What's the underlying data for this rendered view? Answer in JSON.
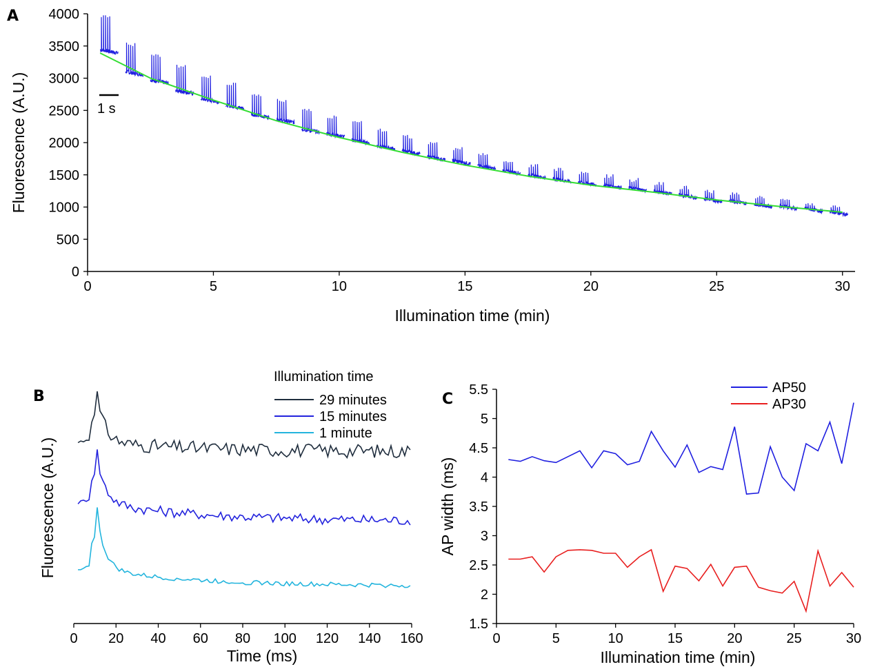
{
  "panel_labels": {
    "a": "A",
    "b": "B",
    "c": "C"
  },
  "chart_data": [
    {
      "id": "A",
      "type": "line",
      "title": "",
      "xlabel": "Illumination time (min)",
      "ylabel": "Fluorescence (A.U.)",
      "xlim": [
        0,
        30.5
      ],
      "ylim": [
        0,
        4000
      ],
      "xticks": [
        0,
        5,
        10,
        15,
        20,
        25,
        30
      ],
      "yticks": [
        0,
        500,
        1000,
        1500,
        2000,
        2500,
        3000,
        3500,
        4000
      ],
      "scale_bar_label": "1 s",
      "colors": {
        "trace": "#1f1fe0",
        "fit": "#33dd33"
      },
      "bursts": [
        {
          "t": 0.5,
          "base": 3420,
          "peak": 3980
        },
        {
          "t": 1.5,
          "base": 3080,
          "peak": 3560
        },
        {
          "t": 2.5,
          "base": 2950,
          "peak": 3390
        },
        {
          "t": 3.5,
          "base": 2790,
          "peak": 3210
        },
        {
          "t": 4.5,
          "base": 2660,
          "peak": 3060
        },
        {
          "t": 5.5,
          "base": 2560,
          "peak": 2950
        },
        {
          "t": 6.5,
          "base": 2420,
          "peak": 2770
        },
        {
          "t": 7.5,
          "base": 2340,
          "peak": 2680
        },
        {
          "t": 8.5,
          "base": 2190,
          "peak": 2530
        },
        {
          "t": 9.5,
          "base": 2120,
          "peak": 2430
        },
        {
          "t": 10.5,
          "base": 2020,
          "peak": 2350
        },
        {
          "t": 11.5,
          "base": 1930,
          "peak": 2230
        },
        {
          "t": 12.5,
          "base": 1850,
          "peak": 2120
        },
        {
          "t": 13.5,
          "base": 1760,
          "peak": 2010
        },
        {
          "t": 14.5,
          "base": 1700,
          "peak": 1930
        },
        {
          "t": 15.5,
          "base": 1620,
          "peak": 1840
        },
        {
          "t": 16.5,
          "base": 1550,
          "peak": 1750
        },
        {
          "t": 17.5,
          "base": 1480,
          "peak": 1670
        },
        {
          "t": 18.5,
          "base": 1420,
          "peak": 1610
        },
        {
          "t": 19.5,
          "base": 1370,
          "peak": 1560
        },
        {
          "t": 20.5,
          "base": 1330,
          "peak": 1510
        },
        {
          "t": 21.5,
          "base": 1280,
          "peak": 1450
        },
        {
          "t": 22.5,
          "base": 1230,
          "peak": 1390
        },
        {
          "t": 23.5,
          "base": 1170,
          "peak": 1330
        },
        {
          "t": 24.5,
          "base": 1110,
          "peak": 1270
        },
        {
          "t": 25.5,
          "base": 1080,
          "peak": 1230
        },
        {
          "t": 26.5,
          "base": 1030,
          "peak": 1180
        },
        {
          "t": 27.5,
          "base": 1000,
          "peak": 1130
        },
        {
          "t": 28.5,
          "base": 960,
          "peak": 1080
        },
        {
          "t": 29.5,
          "base": 910,
          "peak": 1030
        }
      ],
      "fit": [
        {
          "x": 0.5,
          "y": 3390
        },
        {
          "x": 2.5,
          "y": 3000
        },
        {
          "x": 5,
          "y": 2660
        },
        {
          "x": 7.5,
          "y": 2340
        },
        {
          "x": 10,
          "y": 2080
        },
        {
          "x": 12.5,
          "y": 1850
        },
        {
          "x": 15,
          "y": 1650
        },
        {
          "x": 17.5,
          "y": 1480
        },
        {
          "x": 20,
          "y": 1340
        },
        {
          "x": 22.5,
          "y": 1230
        },
        {
          "x": 25,
          "y": 1110
        },
        {
          "x": 27.5,
          "y": 1010
        },
        {
          "x": 30,
          "y": 920
        }
      ]
    },
    {
      "id": "B",
      "type": "line",
      "title": "",
      "xlabel": "Time (ms)",
      "ylabel": "Fluorescence (A.U.)",
      "xlim": [
        0,
        160
      ],
      "xticks": [
        0,
        20,
        40,
        60,
        80,
        100,
        120,
        140,
        160
      ],
      "legend_title": "Illumination time",
      "legend_position": "top-right",
      "series": [
        {
          "name": "29 minutes",
          "color": "#1f2d3d",
          "baseline": 0.78,
          "peak": 1.0,
          "tail": 0.74,
          "noise": 0.03
        },
        {
          "name": "15 minutes",
          "color": "#2222dd",
          "baseline": 0.52,
          "peak": 0.75,
          "tail": 0.44,
          "noise": 0.022
        },
        {
          "name": "1 minute",
          "color": "#22b4dd",
          "baseline": 0.23,
          "peak": 0.5,
          "tail": 0.16,
          "noise": 0.01
        }
      ]
    },
    {
      "id": "C",
      "type": "line",
      "title": "",
      "xlabel": "Illumination time (min)",
      "ylabel": "AP width (ms)",
      "xlim": [
        0,
        30
      ],
      "ylim": [
        1.5,
        5.5
      ],
      "xticks": [
        0,
        5,
        10,
        15,
        20,
        25,
        30
      ],
      "yticks": [
        1.5,
        2,
        2.5,
        3,
        3.5,
        4,
        4.5,
        5,
        5.5
      ],
      "legend_position": "top-center",
      "x": [
        1,
        2,
        3,
        4,
        5,
        6,
        7,
        8,
        9,
        10,
        11,
        12,
        13,
        14,
        15,
        16,
        17,
        18,
        19,
        20,
        21,
        22,
        23,
        24,
        25,
        26,
        27,
        28,
        29,
        30
      ],
      "series": [
        {
          "name": "AP50",
          "color": "#1f1fe0",
          "values": [
            4.3,
            4.27,
            4.35,
            4.28,
            4.25,
            4.35,
            4.45,
            4.16,
            4.45,
            4.4,
            4.21,
            4.27,
            4.78,
            4.45,
            4.17,
            4.55,
            4.08,
            4.18,
            4.13,
            4.86,
            3.71,
            3.73,
            4.52,
            4.0,
            3.77,
            4.57,
            4.45,
            4.94,
            4.23,
            5.27
          ]
        },
        {
          "name": "AP30",
          "color": "#e81e1e",
          "values": [
            2.6,
            2.6,
            2.64,
            2.38,
            2.64,
            2.75,
            2.76,
            2.75,
            2.7,
            2.7,
            2.46,
            2.64,
            2.76,
            2.05,
            2.48,
            2.44,
            2.23,
            2.51,
            2.14,
            2.46,
            2.48,
            2.12,
            2.06,
            2.02,
            2.22,
            1.71,
            2.74,
            2.14,
            2.37,
            2.12
          ]
        }
      ]
    }
  ]
}
